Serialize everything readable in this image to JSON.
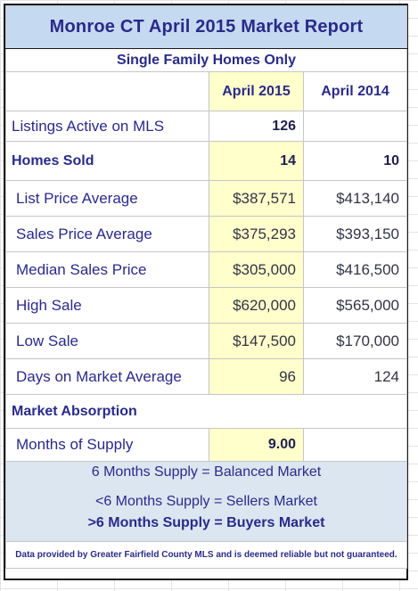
{
  "title": "Monroe CT April 2015 Market Report",
  "subtitle": "Single Family Homes Only",
  "columns": [
    "April 2015",
    "April 2014"
  ],
  "listings": {
    "label": "Listings Active on MLS",
    "current": "126",
    "prior": ""
  },
  "homes_sold": {
    "label": "Homes Sold",
    "current": "14",
    "prior": "10"
  },
  "rows": [
    {
      "label": "List Price Average",
      "current": "$387,571",
      "prior": "$413,140"
    },
    {
      "label": "Sales Price Average",
      "current": "$375,293",
      "prior": "$393,150"
    },
    {
      "label": "Median Sales Price",
      "current": "$305,000",
      "prior": "$416,500"
    },
    {
      "label": "High Sale",
      "current": "$620,000",
      "prior": "$565,000"
    },
    {
      "label": "Low Sale",
      "current": "$147,500",
      "prior": "$170,000"
    },
    {
      "label": "Days on Market Average",
      "current": "96",
      "prior": "124"
    }
  ],
  "absorption": {
    "heading": "Market Absorption",
    "supply_label": "Months of Supply",
    "supply_value": "9.00"
  },
  "legend": [
    "6 Months Supply = Balanced Market",
    "<6 Months Supply = Sellers Market",
    ">6 Months Supply = Buyers Market"
  ],
  "footnote": "Data provided by Greater Fairfield County MLS and is deemed reliable but not guaranteed.",
  "colors": {
    "title_bg": "#c5d9f1",
    "highlight": "#ffffcc",
    "legend_bg": "#dce6f1",
    "text": "#2a2a8a"
  }
}
